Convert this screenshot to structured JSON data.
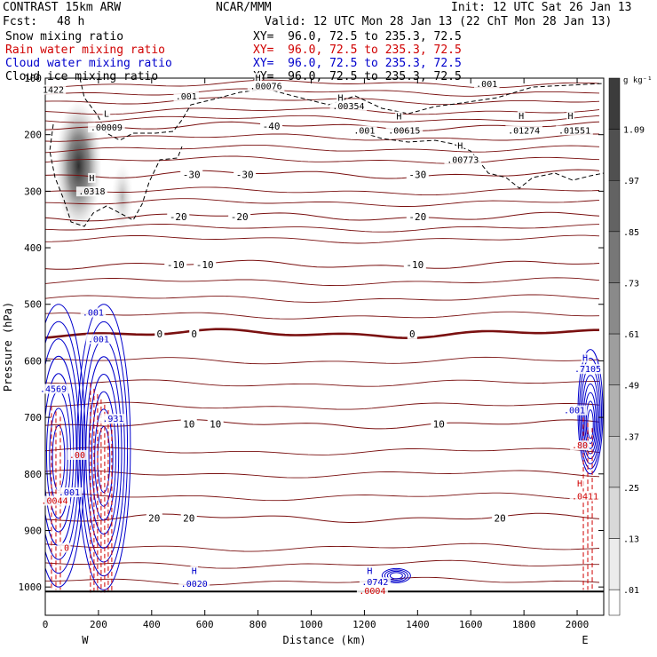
{
  "header": {
    "model": "CONTRAST 15km ARW",
    "org": "NCAR/MMM",
    "init": "Init: 12 UTC Sat 26 Jan 13",
    "fcst_label": "Fcst:",
    "fcst_value": "48 h",
    "valid": "Valid: 12 UTC Mon 28 Jan 13 (22 ChT Mon 28 Jan 13)"
  },
  "fields": [
    {
      "name": "Snow mixing ratio",
      "xy": "XY=  96.0, 72.5 to 235.3, 72.5",
      "color": "#000000"
    },
    {
      "name": "Rain water mixing ratio",
      "xy": "XY=  96.0, 72.5 to 235.3, 72.5",
      "color": "#d00000"
    },
    {
      "name": "Cloud water mixing ratio",
      "xy": "XY=  96.0, 72.5 to 235.3, 72.5",
      "color": "#0000cc"
    },
    {
      "name": "Cloud ice mixing ratio",
      "xy": "XY=  96.0, 72.5 to 235.3, 72.5",
      "color": "#000000"
    }
  ],
  "chart_data": {
    "type": "cross-section",
    "xlabel": "Distance (km)",
    "ylabel": "Pressure (hPa)",
    "xlim": [
      0,
      2100
    ],
    "ylim": [
      1050,
      100
    ],
    "x_ticks": [
      0,
      200,
      400,
      600,
      800,
      1000,
      1200,
      1400,
      1600,
      1800,
      2000
    ],
    "x_tick_labels": [
      "0",
      "200",
      "400",
      "600",
      "800",
      "1000",
      "1200",
      "1400",
      "1600",
      "1800",
      "2000"
    ],
    "y_ticks": [
      200,
      300,
      400,
      500,
      600,
      700,
      800,
      900,
      1000
    ],
    "y_tick_labels": [
      "200",
      "300",
      "400",
      "500",
      "600",
      "700",
      "800",
      "900",
      "1000"
    ],
    "top_tick_label": "100",
    "end_labels": {
      "west": "W",
      "east": "E"
    },
    "colorbar": {
      "unit": "g kg⁻¹",
      "levels": [
        1.09,
        0.97,
        0.85,
        0.73,
        0.61,
        0.49,
        0.37,
        0.25,
        0.13,
        0.01
      ],
      "labels": [
        "1.09",
        ".97",
        ".85",
        ".73",
        ".61",
        ".49",
        ".37",
        ".25",
        ".13",
        ".01"
      ]
    },
    "temperature_contours": {
      "unit": "C",
      "levels": [
        {
          "value": -40,
          "p": 185,
          "labels": [
            {
              "x": 850,
              "text": "-40"
            }
          ]
        },
        {
          "value": -30,
          "p": 270,
          "labels": [
            {
              "x": 550,
              "text": "-30"
            },
            {
              "x": 750,
              "text": "-30"
            },
            {
              "x": 1400,
              "text": "-30"
            }
          ]
        },
        {
          "value": -20,
          "p": 345,
          "labels": [
            {
              "x": 500,
              "text": "-20"
            },
            {
              "x": 730,
              "text": "-20"
            },
            {
              "x": 1400,
              "text": "-20"
            }
          ]
        },
        {
          "value": -10,
          "p": 430,
          "labels": [
            {
              "x": 490,
              "text": "-10"
            },
            {
              "x": 600,
              "text": "-10"
            },
            {
              "x": 1390,
              "text": "-10"
            }
          ]
        },
        {
          "value": 0,
          "p": 552,
          "labels": [
            {
              "x": 430,
              "text": "0"
            },
            {
              "x": 560,
              "text": "0"
            },
            {
              "x": 1380,
              "text": "0"
            }
          ]
        },
        {
          "value": 10,
          "p": 712,
          "labels": [
            {
              "x": 540,
              "text": "10"
            },
            {
              "x": 640,
              "text": "10"
            },
            {
              "x": 1480,
              "text": "10"
            }
          ]
        },
        {
          "value": 20,
          "p": 878,
          "labels": [
            {
              "x": 410,
              "text": "20"
            },
            {
              "x": 540,
              "text": "20"
            },
            {
              "x": 1710,
              "text": "20"
            }
          ]
        }
      ]
    },
    "annotations": [
      {
        "text": "1422",
        "x": 30,
        "p": 126,
        "color": "#000000"
      },
      {
        "text": "L",
        "x": 230,
        "p": 168,
        "color": "#000000"
      },
      {
        "text": ".00009",
        "x": 230,
        "p": 193,
        "color": "#000000"
      },
      {
        "text": "H",
        "x": 175,
        "p": 282,
        "color": "#000000"
      },
      {
        "text": ".0318",
        "x": 175,
        "p": 306,
        "color": "#000000"
      },
      {
        "text": ".001",
        "x": 530,
        "p": 138,
        "color": "#000000"
      },
      {
        "text": "H",
        "x": 800,
        "p": 105,
        "color": "#000000"
      },
      {
        "text": ".00076",
        "x": 830,
        "p": 120,
        "color": "#000000"
      },
      {
        "text": "H",
        "x": 1110,
        "p": 140,
        "color": "#000000"
      },
      {
        "text": ".00354",
        "x": 1140,
        "p": 155,
        "color": "#000000"
      },
      {
        "text": ".001",
        "x": 1660,
        "p": 116,
        "color": "#000000"
      },
      {
        "text": ".001",
        "x": 1200,
        "p": 198,
        "color": "#000000"
      },
      {
        "text": "H",
        "x": 1330,
        "p": 173,
        "color": "#000000"
      },
      {
        "text": ".00615",
        "x": 1350,
        "p": 198,
        "color": "#000000"
      },
      {
        "text": "H",
        "x": 1790,
        "p": 172,
        "color": "#000000"
      },
      {
        "text": ".01274",
        "x": 1800,
        "p": 198,
        "color": "#000000"
      },
      {
        "text": "H",
        "x": 1975,
        "p": 172,
        "color": "#000000"
      },
      {
        "text": ".01551",
        "x": 1990,
        "p": 198,
        "color": "#000000"
      },
      {
        "text": "H",
        "x": 1560,
        "p": 225,
        "color": "#000000"
      },
      {
        "text": ".00773",
        "x": 1570,
        "p": 250,
        "color": "#000000"
      },
      {
        "text": ".001",
        "x": 180,
        "p": 520,
        "color": "#0000cc"
      },
      {
        "text": ".001",
        "x": 200,
        "p": 567,
        "color": "#0000cc"
      },
      {
        "text": ".4569",
        "x": 30,
        "p": 655,
        "color": "#0000cc"
      },
      {
        "text": ".931",
        "x": 255,
        "p": 708,
        "color": "#0000cc"
      },
      {
        "text": ".001",
        "x": 90,
        "p": 838,
        "color": "#0000cc"
      },
      {
        "text": ".0044",
        "x": 35,
        "p": 853,
        "color": "#d00000"
      },
      {
        "text": ".00",
        "x": 120,
        "p": 772,
        "color": "#d00000"
      },
      {
        "text": ".0",
        "x": 70,
        "p": 936,
        "color": "#d00000"
      },
      {
        "text": "H",
        "x": 560,
        "p": 977,
        "color": "#0000cc"
      },
      {
        "text": ".0020",
        "x": 560,
        "p": 1000,
        "color": "#0000cc"
      },
      {
        "text": "H",
        "x": 1220,
        "p": 977,
        "color": "#0000cc"
      },
      {
        "text": ".0742",
        "x": 1240,
        "p": 997,
        "color": "#0000cc"
      },
      {
        "text": ".0004",
        "x": 1230,
        "p": 1012,
        "color": "#d00000"
      },
      {
        "text": "H",
        "x": 2030,
        "p": 600,
        "color": "#0000cc"
      },
      {
        "text": ".7105",
        "x": 2040,
        "p": 620,
        "color": "#0000cc"
      },
      {
        "text": ".001",
        "x": 1990,
        "p": 693,
        "color": "#0000cc"
      },
      {
        "text": ".80",
        "x": 2010,
        "p": 755,
        "color": "#d00000"
      },
      {
        "text": "H",
        "x": 2010,
        "p": 822,
        "color": "#d00000"
      },
      {
        "text": ".0411",
        "x": 2030,
        "p": 845,
        "color": "#d00000"
      }
    ],
    "snow_shading": [
      {
        "x": 125,
        "p_top": 140,
        "p_bot": 370,
        "max": 0.9
      },
      {
        "x": 290,
        "p_top": 250,
        "p_bot": 370,
        "max": 0.2
      }
    ],
    "cloud_water_columns": [
      {
        "x": 50,
        "p_top": 500,
        "p_bot": 1000
      },
      {
        "x": 220,
        "p_top": 500,
        "p_bot": 1005
      },
      {
        "x": 2050,
        "p_top": 580,
        "p_bot": 800
      }
    ],
    "rain_columns": [
      {
        "x": 40,
        "p_top": 680,
        "p_bot": 1005
      },
      {
        "x": 210,
        "p_top": 640,
        "p_bot": 1010
      },
      {
        "x": 2040,
        "p_top": 700,
        "p_bot": 1005
      }
    ]
  }
}
